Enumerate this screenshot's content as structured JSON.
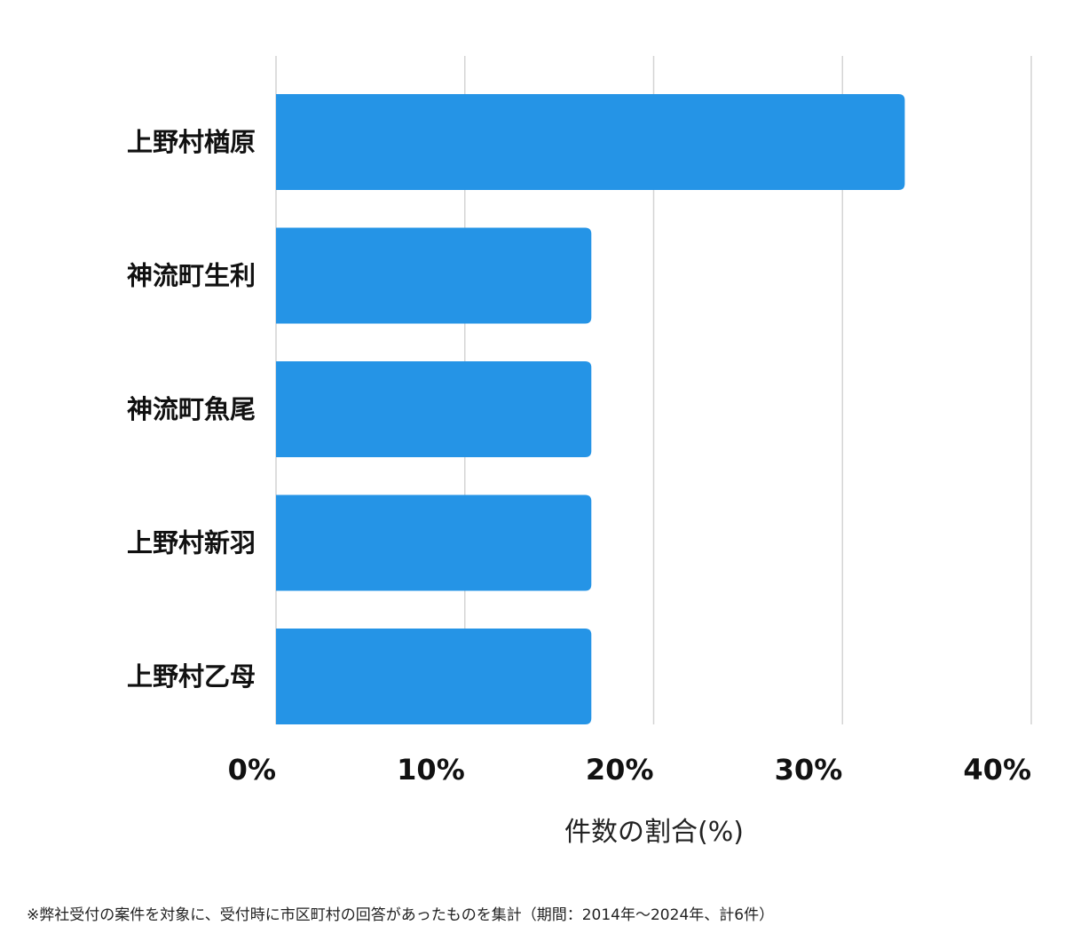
{
  "chart_data": {
    "type": "bar",
    "orientation": "horizontal",
    "categories": [
      "上野村楢原",
      "神流町生利",
      "神流町魚尾",
      "上野村新羽",
      "上野村乙母"
    ],
    "values": [
      33.3,
      16.7,
      16.7,
      16.7,
      16.7
    ],
    "xlim": [
      0,
      40
    ],
    "xticks": [
      0,
      10,
      20,
      30,
      40
    ],
    "xtick_labels": [
      "0%",
      "10%",
      "20%",
      "30%",
      "40%"
    ],
    "xlabel": "件数の割合(%)",
    "ylabel": "",
    "grid": true,
    "bar_color": "#2594e6",
    "grid_color": "#d4d4d4"
  },
  "footnote": "※弊社受付の案件を対象に、受付時に市区町村の回答があったものを集計（期間：2014年～2024年、計6件）"
}
